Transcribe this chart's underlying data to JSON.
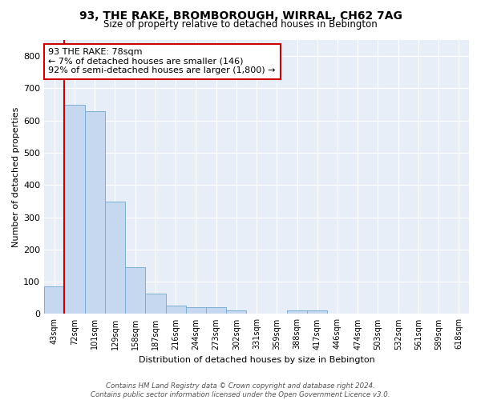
{
  "title": "93, THE RAKE, BROMBOROUGH, WIRRAL, CH62 7AG",
  "subtitle": "Size of property relative to detached houses in Bebington",
  "xlabel": "Distribution of detached houses by size in Bebington",
  "ylabel": "Number of detached properties",
  "bar_color": "#c5d8f0",
  "bar_edge_color": "#7bafd4",
  "background_color": "#e8eef8",
  "bins": [
    "43sqm",
    "72sqm",
    "101sqm",
    "129sqm",
    "158sqm",
    "187sqm",
    "216sqm",
    "244sqm",
    "273sqm",
    "302sqm",
    "331sqm",
    "359sqm",
    "388sqm",
    "417sqm",
    "446sqm",
    "474sqm",
    "503sqm",
    "532sqm",
    "561sqm",
    "589sqm",
    "618sqm"
  ],
  "values": [
    85,
    650,
    630,
    348,
    145,
    62,
    27,
    22,
    20,
    10,
    0,
    0,
    10,
    10,
    0,
    0,
    0,
    0,
    0,
    0,
    0
  ],
  "ylim": [
    0,
    850
  ],
  "yticks": [
    0,
    100,
    200,
    300,
    400,
    500,
    600,
    700,
    800
  ],
  "highlight_bin_index": 1,
  "highlight_color": "#cc0000",
  "annotation_text": "93 THE RAKE: 78sqm\n← 7% of detached houses are smaller (146)\n92% of semi-detached houses are larger (1,800) →",
  "footnote": "Contains HM Land Registry data © Crown copyright and database right 2024.\nContains public sector information licensed under the Open Government Licence v3.0."
}
